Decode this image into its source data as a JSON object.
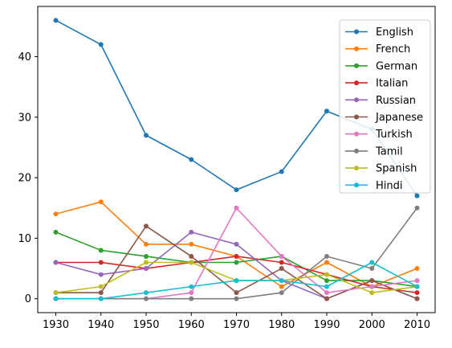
{
  "chart_data": {
    "type": "line",
    "title": "",
    "xlabel": "",
    "ylabel": "",
    "x": [
      1930,
      1940,
      1950,
      1960,
      1970,
      1980,
      1990,
      2000,
      2010
    ],
    "xticks": [
      "1930",
      "1940",
      "1950",
      "1960",
      "1970",
      "1980",
      "1990",
      "2000",
      "2010"
    ],
    "yticks": [
      "0",
      "10",
      "20",
      "30",
      "40"
    ],
    "xlim": [
      1925.999,
      2014.001
    ],
    "ylim": [
      -2.3,
      48.3
    ],
    "grid": false,
    "legend": "top-right",
    "series": [
      {
        "name": "English",
        "color": "#1f77b4",
        "values": [
          46,
          42,
          27,
          23,
          18,
          21,
          31,
          28,
          17
        ]
      },
      {
        "name": "French",
        "color": "#ff7f0e",
        "values": [
          14,
          16,
          9,
          9,
          7,
          2,
          6,
          2,
          5
        ]
      },
      {
        "name": "German",
        "color": "#2ca02c",
        "values": [
          11,
          8,
          7,
          6,
          6,
          7,
          3,
          3,
          2
        ]
      },
      {
        "name": "Italian",
        "color": "#d62728",
        "values": [
          6,
          6,
          5,
          6,
          7,
          6,
          4,
          2,
          1
        ]
      },
      {
        "name": "Russian",
        "color": "#9467bd",
        "values": [
          6,
          4,
          5,
          11,
          9,
          3,
          0,
          3,
          0
        ]
      },
      {
        "name": "Japanese",
        "color": "#8c564b",
        "values": [
          1,
          1,
          12,
          7,
          1,
          5,
          0,
          3,
          0
        ]
      },
      {
        "name": "Turkish",
        "color": "#e377c2",
        "values": [
          0,
          0,
          0,
          1,
          15,
          7,
          1,
          2,
          3
        ]
      },
      {
        "name": "Tamil",
        "color": "#7f7f7f",
        "values": [
          0,
          0,
          0,
          0,
          0,
          1,
          7,
          5,
          15
        ]
      },
      {
        "name": "Spanish",
        "color": "#bcbd22",
        "values": [
          1,
          2,
          6,
          6,
          3,
          3,
          4,
          1,
          2
        ]
      },
      {
        "name": "Hindi",
        "color": "#17becf",
        "values": [
          0,
          0,
          1,
          2,
          3,
          3,
          2,
          6,
          2
        ]
      }
    ]
  }
}
